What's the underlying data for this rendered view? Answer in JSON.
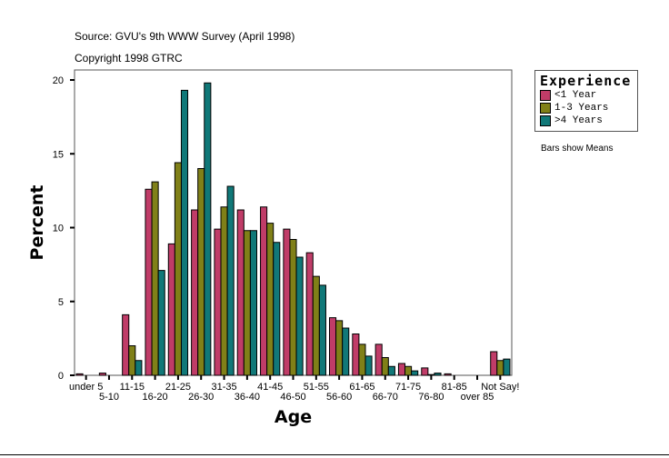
{
  "header": {
    "source": "Source: GVU's 9th WWW Survey (April 1998)",
    "copyright": "Copyright 1998 GTRC"
  },
  "note": "Bars show Means",
  "chart_data": {
    "type": "bar",
    "xlabel": "Age",
    "ylabel": "Percent",
    "ylim": [
      0,
      20
    ],
    "yticks": [
      0,
      5,
      10,
      15,
      20
    ],
    "categories": [
      "under 5",
      "5-10",
      "11-15",
      "16-20",
      "21-25",
      "26-30",
      "31-35",
      "36-40",
      "41-45",
      "46-50",
      "51-55",
      "56-60",
      "61-65",
      "66-70",
      "71-75",
      "76-80",
      "81-85",
      "over 85",
      "Not Say!"
    ],
    "legend_title": "Experience",
    "legend_placement": "right",
    "series": [
      {
        "name": "<1 Year",
        "color": "#c03c68",
        "values": [
          0.1,
          0.15,
          4.1,
          12.6,
          8.9,
          11.2,
          9.9,
          11.2,
          11.4,
          9.9,
          8.3,
          3.9,
          2.8,
          2.1,
          0.8,
          0.5,
          0.1,
          0,
          1.6
        ]
      },
      {
        "name": "1-3 Years",
        "color": "#808018",
        "values": [
          0,
          0,
          2.0,
          13.1,
          14.4,
          14.0,
          11.4,
          9.8,
          10.3,
          9.2,
          6.7,
          3.7,
          2.1,
          1.2,
          0.6,
          0.05,
          0,
          0,
          1.0
        ]
      },
      {
        "name": ">4 Years",
        "color": "#107878",
        "values": [
          0,
          0,
          1.0,
          7.1,
          19.3,
          19.8,
          12.8,
          9.8,
          9.0,
          8.0,
          6.1,
          3.2,
          1.3,
          0.6,
          0.3,
          0.15,
          0,
          0,
          1.1
        ]
      }
    ]
  }
}
